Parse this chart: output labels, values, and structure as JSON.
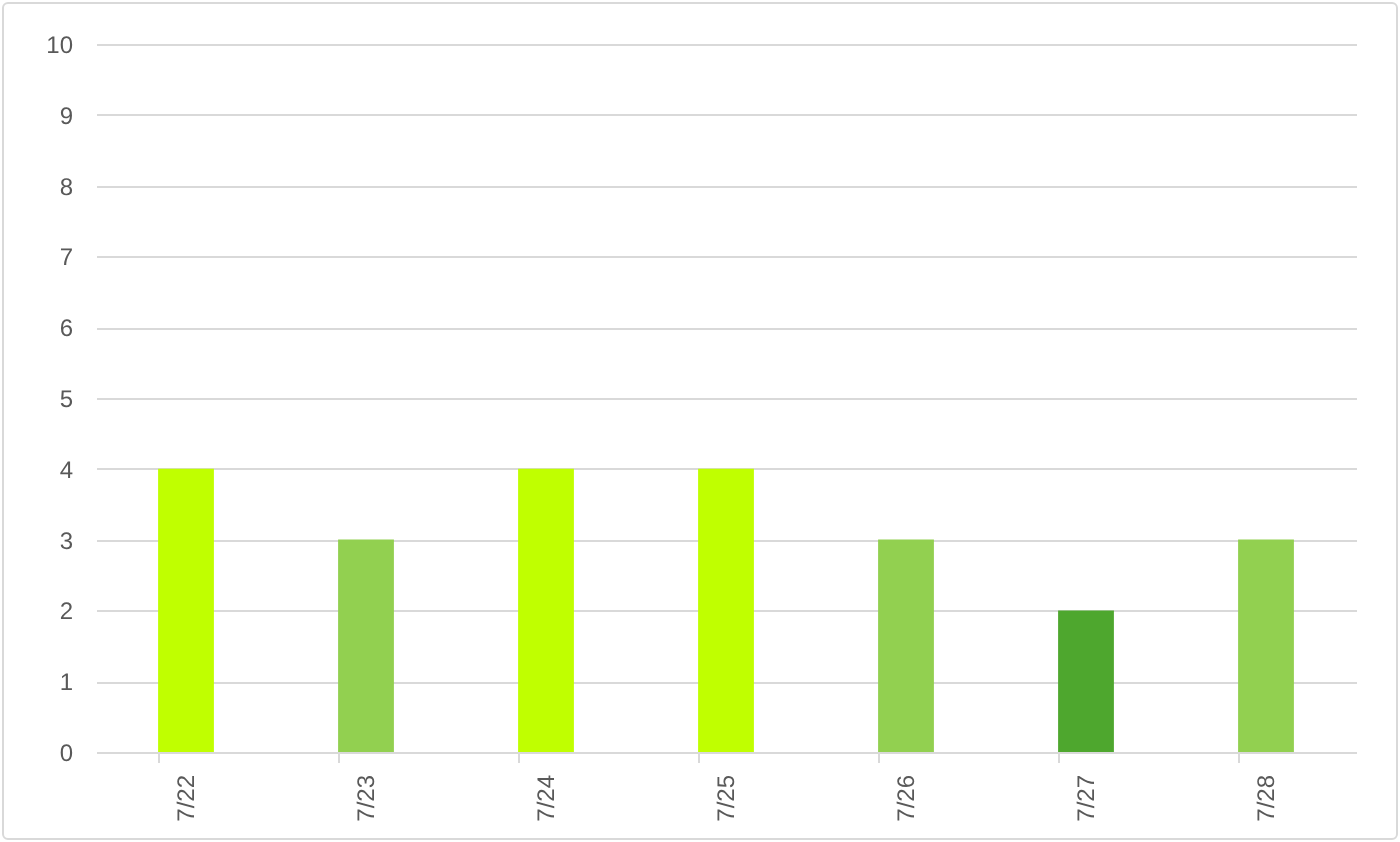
{
  "chart_data": {
    "type": "bar",
    "categories": [
      "7/22",
      "7/23",
      "7/24",
      "7/25",
      "7/26",
      "7/27",
      "7/28"
    ],
    "values": [
      4,
      3,
      4,
      4,
      3,
      2,
      3
    ],
    "colors": [
      "#c0ff00",
      "#92d050",
      "#c0ff00",
      "#c0ff00",
      "#92d050",
      "#4ea72e",
      "#92d050"
    ],
    "ylim": [
      0,
      10
    ],
    "yticks": [
      0,
      1,
      2,
      3,
      4,
      5,
      6,
      7,
      8,
      9,
      10
    ],
    "grid": "y"
  }
}
